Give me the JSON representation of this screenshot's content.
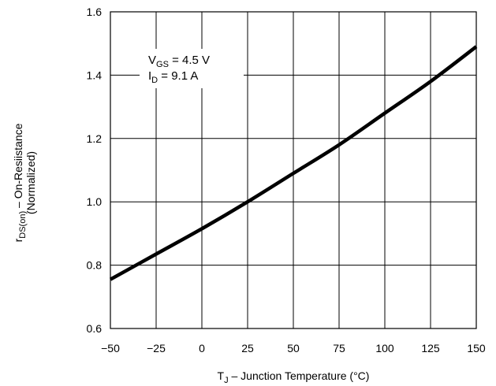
{
  "chart_data": {
    "type": "line",
    "xlabel": {
      "main": "T",
      "sub": "J",
      "rest": " – Junction Temperature (°C)"
    },
    "ylabel": {
      "pre": "r",
      "sub": "DS(on)",
      "rest": " – On-Resiistance",
      "line2": "(Normalized)"
    },
    "xlim": [
      -50,
      150
    ],
    "ylim": [
      0.6,
      1.6
    ],
    "x_ticks": [
      -50,
      -25,
      0,
      25,
      50,
      75,
      100,
      125,
      150
    ],
    "x_tick_labels": [
      "−50",
      "−25",
      "0",
      "25",
      "50",
      "75",
      "100",
      "125",
      "150"
    ],
    "y_ticks": [
      0.6,
      0.8,
      1.0,
      1.2,
      1.4,
      1.6
    ],
    "y_tick_labels": [
      "0.6",
      "0.8",
      "1.0",
      "1.2",
      "1.4",
      "1.6"
    ],
    "grid": true,
    "annotation": {
      "line1": {
        "main": "V",
        "sub": "GS",
        "rest": " = 4.5 V"
      },
      "line2": {
        "main": "I",
        "sub": "D",
        "rest": " = 9.1 A"
      }
    },
    "series": [
      {
        "color": "#000000",
        "x": [
          -50,
          -25,
          0,
          25,
          50,
          75,
          100,
          125,
          150
        ],
        "y": [
          0.755,
          0.835,
          0.915,
          1.0,
          1.09,
          1.18,
          1.28,
          1.38,
          1.49
        ]
      }
    ]
  }
}
